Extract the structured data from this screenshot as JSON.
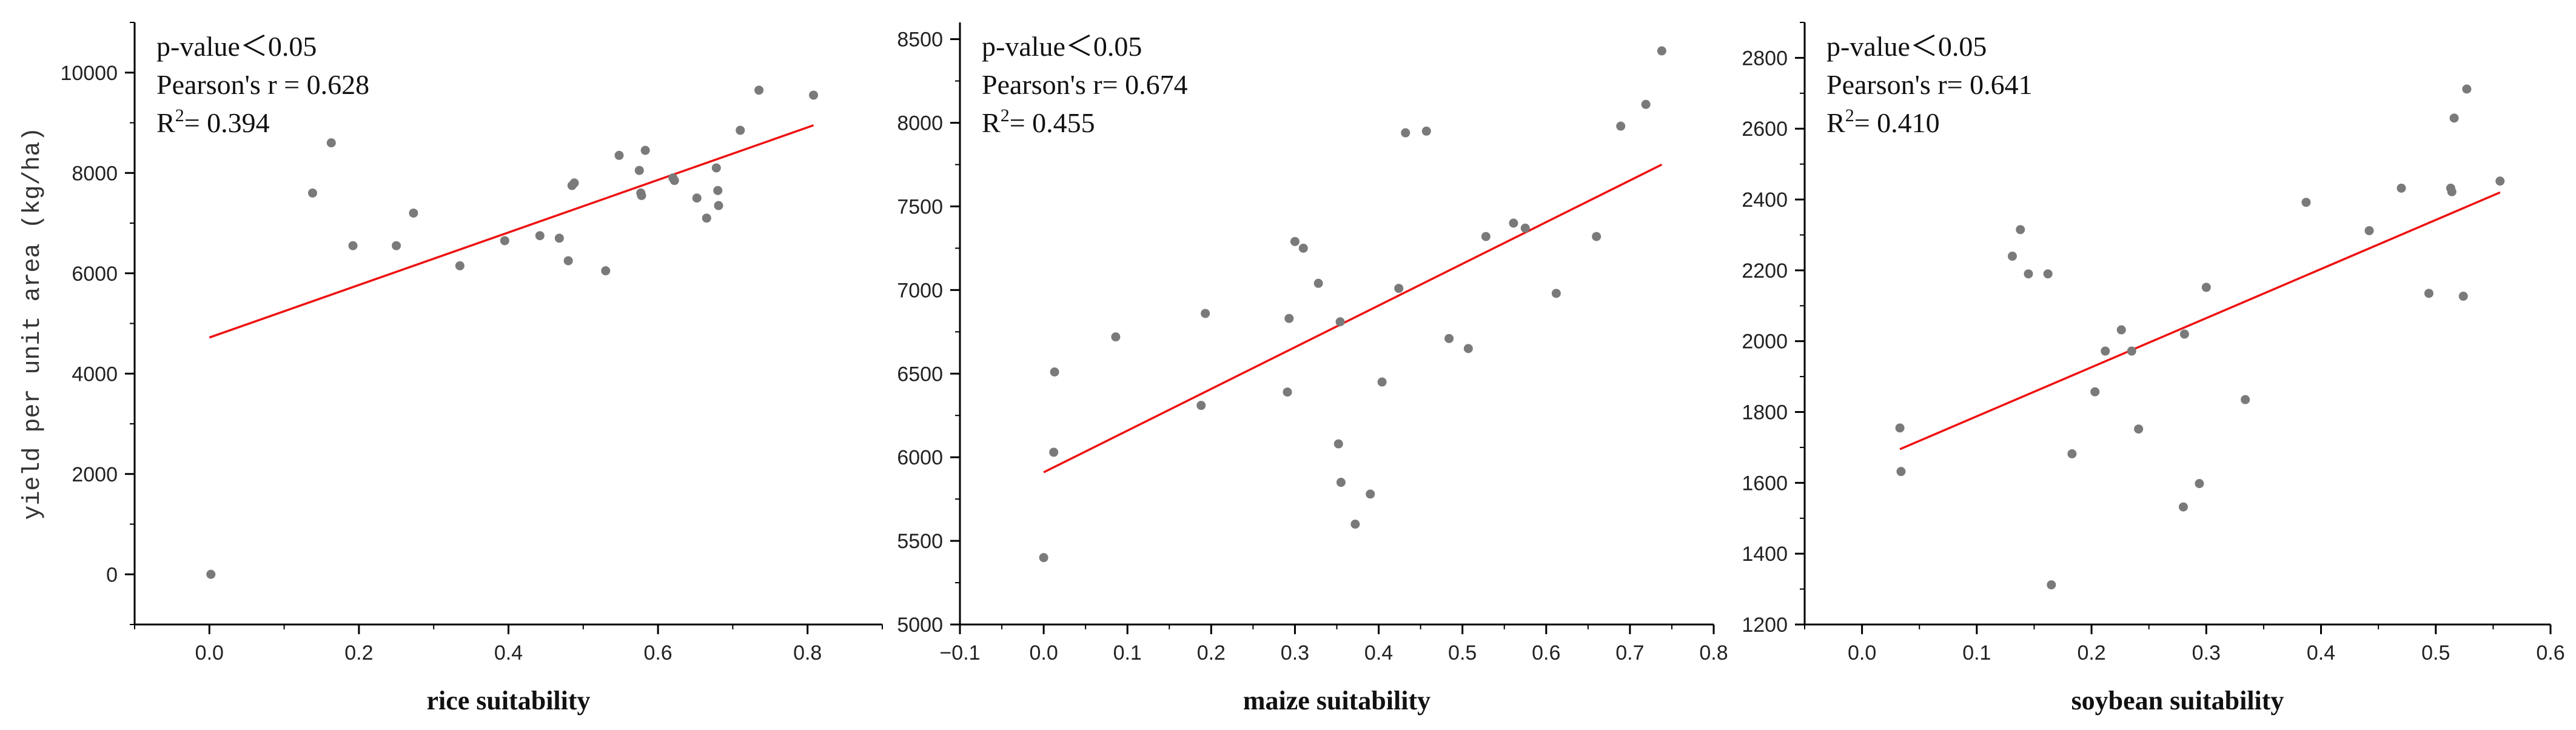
{
  "chart_data": [
    {
      "type": "scatter",
      "xlabel": "rice suitability",
      "ylabel": "yield per unit area (kg/ha)",
      "xlim": [
        -0.1,
        0.9
      ],
      "ylim": [
        -1000,
        11000
      ],
      "xticks": [
        0.0,
        0.2,
        0.4,
        0.6,
        0.8
      ],
      "xtick_labels": [
        "0.0",
        "0.2",
        "0.4",
        "0.6",
        "0.8"
      ],
      "yticks": [
        0,
        2000,
        4000,
        6000,
        8000,
        10000
      ],
      "ytick_labels": [
        "0",
        "2000",
        "4000",
        "6000",
        "8000",
        "10000"
      ],
      "annotations": [
        "p-value＜0.05",
        "Pearson's r = 0.628",
        "R",
        "2",
        "= 0.394"
      ],
      "points": [
        {
          "x": 0.002,
          "y": 0
        },
        {
          "x": 0.138,
          "y": 7600
        },
        {
          "x": 0.163,
          "y": 8600
        },
        {
          "x": 0.192,
          "y": 6550
        },
        {
          "x": 0.25,
          "y": 6550
        },
        {
          "x": 0.273,
          "y": 7200
        },
        {
          "x": 0.335,
          "y": 6150
        },
        {
          "x": 0.395,
          "y": 6650
        },
        {
          "x": 0.442,
          "y": 6750
        },
        {
          "x": 0.468,
          "y": 6700
        },
        {
          "x": 0.48,
          "y": 6250
        },
        {
          "x": 0.485,
          "y": 7750
        },
        {
          "x": 0.488,
          "y": 7800
        },
        {
          "x": 0.53,
          "y": 6050
        },
        {
          "x": 0.548,
          "y": 8350
        },
        {
          "x": 0.575,
          "y": 8050
        },
        {
          "x": 0.577,
          "y": 7600
        },
        {
          "x": 0.578,
          "y": 7550
        },
        {
          "x": 0.583,
          "y": 8450
        },
        {
          "x": 0.62,
          "y": 7900
        },
        {
          "x": 0.622,
          "y": 7850
        },
        {
          "x": 0.652,
          "y": 7500
        },
        {
          "x": 0.665,
          "y": 7100
        },
        {
          "x": 0.678,
          "y": 8100
        },
        {
          "x": 0.68,
          "y": 7650
        },
        {
          "x": 0.681,
          "y": 7350
        },
        {
          "x": 0.71,
          "y": 8850
        },
        {
          "x": 0.735,
          "y": 9650
        },
        {
          "x": 0.808,
          "y": 9550
        }
      ],
      "fit": {
        "x": [
          0.0,
          0.808
        ],
        "y": [
          4720,
          8950
        ]
      }
    },
    {
      "type": "scatter",
      "xlabel": "maize suitability",
      "ylabel": "",
      "xlim": [
        -0.1,
        0.8
      ],
      "ylim": [
        5000,
        8600
      ],
      "xticks": [
        -0.1,
        0.0,
        0.1,
        0.2,
        0.3,
        0.4,
        0.5,
        0.6,
        0.7,
        0.8
      ],
      "xtick_labels": [
        "−0.1",
        "0.0",
        "0.1",
        "0.2",
        "0.3",
        "0.4",
        "0.5",
        "0.6",
        "0.7",
        "0.8"
      ],
      "yticks": [
        5000,
        5500,
        6000,
        6500,
        7000,
        7500,
        8000,
        8500
      ],
      "ytick_labels": [
        "5000",
        "5500",
        "6000",
        "6500",
        "7000",
        "7500",
        "8000",
        "8500"
      ],
      "annotations": [
        "p-value＜0.05",
        "Pearson's r= 0.674",
        "R",
        "2",
        "= 0.455"
      ],
      "points": [
        {
          "x": 0.0,
          "y": 5400
        },
        {
          "x": 0.012,
          "y": 6030
        },
        {
          "x": 0.013,
          "y": 6510
        },
        {
          "x": 0.086,
          "y": 6720
        },
        {
          "x": 0.188,
          "y": 6310
        },
        {
          "x": 0.193,
          "y": 6860
        },
        {
          "x": 0.291,
          "y": 6390
        },
        {
          "x": 0.293,
          "y": 6830
        },
        {
          "x": 0.3,
          "y": 7290
        },
        {
          "x": 0.31,
          "y": 7250
        },
        {
          "x": 0.328,
          "y": 7040
        },
        {
          "x": 0.352,
          "y": 6080
        },
        {
          "x": 0.354,
          "y": 6810
        },
        {
          "x": 0.355,
          "y": 5850
        },
        {
          "x": 0.372,
          "y": 5600
        },
        {
          "x": 0.39,
          "y": 5780
        },
        {
          "x": 0.404,
          "y": 6450
        },
        {
          "x": 0.424,
          "y": 7010
        },
        {
          "x": 0.432,
          "y": 7940
        },
        {
          "x": 0.457,
          "y": 7950
        },
        {
          "x": 0.484,
          "y": 6710
        },
        {
          "x": 0.507,
          "y": 6650
        },
        {
          "x": 0.528,
          "y": 7320
        },
        {
          "x": 0.561,
          "y": 7400
        },
        {
          "x": 0.575,
          "y": 7370
        },
        {
          "x": 0.612,
          "y": 6980
        },
        {
          "x": 0.66,
          "y": 7320
        },
        {
          "x": 0.689,
          "y": 7980
        },
        {
          "x": 0.719,
          "y": 8110
        },
        {
          "x": 0.738,
          "y": 8430
        }
      ],
      "fit": {
        "x": [
          0.0,
          0.738
        ],
        "y": [
          5910,
          7750
        ]
      }
    },
    {
      "type": "scatter",
      "xlabel": "soybean suitability",
      "ylabel": "",
      "xlim": [
        -0.05,
        0.6
      ],
      "ylim": [
        1200,
        2900
      ],
      "xticks": [
        0.0,
        0.1,
        0.2,
        0.3,
        0.4,
        0.5,
        0.6
      ],
      "xtick_labels": [
        "0.0",
        "0.1",
        "0.2",
        "0.3",
        "0.4",
        "0.5",
        "0.6"
      ],
      "yticks": [
        1200,
        1400,
        1600,
        1800,
        2000,
        2200,
        2400,
        2600,
        2800
      ],
      "ytick_labels": [
        "1200",
        "1400",
        "1600",
        "1800",
        "2000",
        "2200",
        "2400",
        "2600",
        "2800"
      ],
      "annotations": [
        "p-value＜0.05",
        "Pearson's r= 0.641",
        "R",
        "2",
        "= 0.410"
      ],
      "points": [
        {
          "x": 0.033,
          "y": 1755
        },
        {
          "x": 0.034,
          "y": 1632
        },
        {
          "x": 0.131,
          "y": 2240
        },
        {
          "x": 0.138,
          "y": 2315
        },
        {
          "x": 0.145,
          "y": 2190
        },
        {
          "x": 0.162,
          "y": 2190
        },
        {
          "x": 0.165,
          "y": 1312
        },
        {
          "x": 0.183,
          "y": 1682
        },
        {
          "x": 0.203,
          "y": 1857
        },
        {
          "x": 0.212,
          "y": 1972
        },
        {
          "x": 0.226,
          "y": 2032
        },
        {
          "x": 0.235,
          "y": 1972
        },
        {
          "x": 0.241,
          "y": 1752
        },
        {
          "x": 0.28,
          "y": 1532
        },
        {
          "x": 0.281,
          "y": 2020
        },
        {
          "x": 0.294,
          "y": 1598
        },
        {
          "x": 0.3,
          "y": 2152
        },
        {
          "x": 0.334,
          "y": 1835
        },
        {
          "x": 0.387,
          "y": 2392
        },
        {
          "x": 0.442,
          "y": 2312
        },
        {
          "x": 0.47,
          "y": 2432
        },
        {
          "x": 0.494,
          "y": 2135
        },
        {
          "x": 0.513,
          "y": 2432
        },
        {
          "x": 0.514,
          "y": 2422
        },
        {
          "x": 0.516,
          "y": 2630
        },
        {
          "x": 0.524,
          "y": 2127
        },
        {
          "x": 0.527,
          "y": 2712
        },
        {
          "x": 0.556,
          "y": 2452
        }
      ],
      "fit": {
        "x": [
          0.033,
          0.556
        ],
        "y": [
          1695,
          2420
        ]
      }
    }
  ]
}
